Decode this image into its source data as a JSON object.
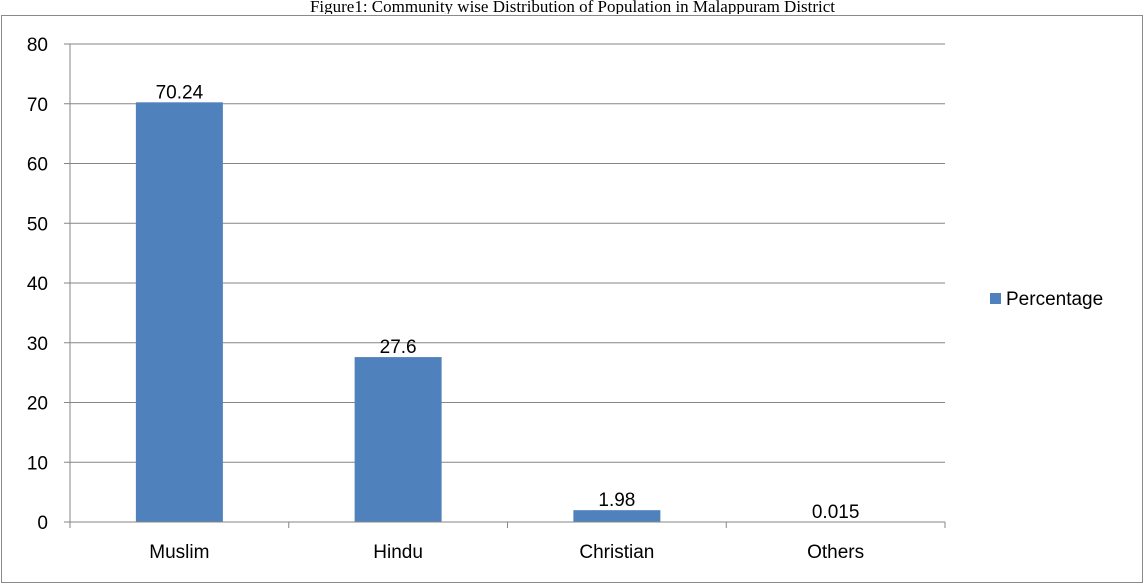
{
  "chart_data": {
    "type": "bar",
    "title": "Figure1: Community wise Distribution of Population in Malappuram District",
    "categories": [
      "Muslim",
      "Hindu",
      "Christian",
      "Others"
    ],
    "series": [
      {
        "name": "Percentage",
        "values": [
          70.24,
          27.6,
          1.98,
          0.015
        ],
        "color": "#4f81bd"
      }
    ],
    "data_labels": [
      "70.24",
      "27.6",
      "1.98",
      "0.015"
    ],
    "ylim": [
      0,
      80
    ],
    "yticks": [
      0,
      10,
      20,
      30,
      40,
      50,
      60,
      70,
      80
    ],
    "xlabel": "",
    "ylabel": "",
    "grid": true,
    "legend_position": "right"
  }
}
